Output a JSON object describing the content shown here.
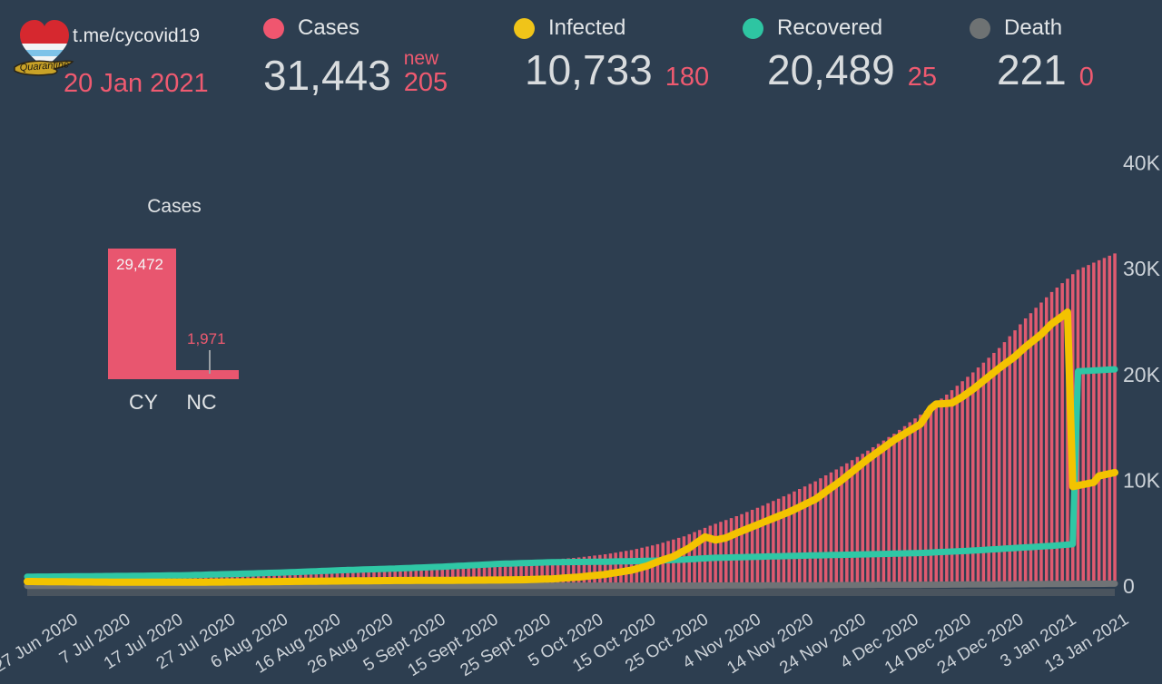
{
  "logo": {
    "caption": "Quarantine",
    "heart_top_color": "#d6282f",
    "stripe_blue": "#3f8fc4",
    "map_gold": "#c9a227"
  },
  "header": {
    "channel": "t.me/cycovid19",
    "date": "20 Jan 2021",
    "stats": [
      {
        "label": "Cases",
        "value": "31,443",
        "new_label": "new",
        "new_value": "205",
        "color": "#f0566f"
      },
      {
        "label": "Infected",
        "value": "10,733",
        "new_value": "180",
        "color": "#f0c419"
      },
      {
        "label": "Recovered",
        "value": "20,489",
        "new_value": "25",
        "color": "#2ec5a2"
      },
      {
        "label": "Death",
        "value": "221",
        "new_value": "0",
        "color": "#6e7273"
      }
    ]
  },
  "colors": {
    "background": "#2d3e50",
    "bars": "#e05a70",
    "infected_line": "#f3c300",
    "recovered_line": "#2fc7a5",
    "death_line": "#6f7376",
    "accent_pink": "#ef5a70",
    "axis_text": "#ccd2d8"
  },
  "chart_data": [
    {
      "type": "bar",
      "title": "Cases",
      "categories": [
        "CY",
        "NC"
      ],
      "values": [
        29472,
        1971
      ],
      "value_labels": [
        "29,472",
        "1,971"
      ],
      "bar_color": "#e8566f"
    },
    {
      "type": "combo",
      "x_unit": "days since 27 Jun 2020 (daily bars, through 20 Jan 2021)",
      "x_tick_labels": [
        "27 Jun 2020",
        "7 Jul 2020",
        "17 Jul 2020",
        "27 Jul 2020",
        "6 Aug 2020",
        "16 Aug 2020",
        "26 Aug 2020",
        "5 Sept 2020",
        "15 Sept 2020",
        "25 Sept 2020",
        "5 Oct 2020",
        "15 Oct 2020",
        "25 Oct 2020",
        "4 Nov 2020",
        "14 Nov 2020",
        "24 Nov 2020",
        "4 Dec 2020",
        "14 Dec 2020",
        "24 Dec 2020",
        "3 Jan 2021",
        "13 Jan 2021"
      ],
      "x_tick_days": [
        0,
        10,
        20,
        30,
        40,
        50,
        60,
        70,
        80,
        90,
        100,
        110,
        120,
        130,
        140,
        150,
        160,
        170,
        180,
        190,
        200
      ],
      "y_tick_labels": [
        "0",
        "10K",
        "20K",
        "30K",
        "40K"
      ],
      "y_tick_values": [
        0,
        10000,
        20000,
        30000,
        40000
      ],
      "ylim": [
        0,
        40000
      ],
      "grid": false,
      "legend_position": "top (header stats row)",
      "series": [
        {
          "name": "Cases",
          "type": "bar",
          "color": "#e05a70",
          "anchors": [
            [
              0,
              800
            ],
            [
              10,
              850
            ],
            [
              20,
              900
            ],
            [
              30,
              1000
            ],
            [
              40,
              1150
            ],
            [
              50,
              1400
            ],
            [
              60,
              1600
            ],
            [
              70,
              1800
            ],
            [
              80,
              2000
            ],
            [
              90,
              2250
            ],
            [
              100,
              2500
            ],
            [
              105,
              2700
            ],
            [
              110,
              3000
            ],
            [
              115,
              3400
            ],
            [
              120,
              3950
            ],
            [
              125,
              4700
            ],
            [
              130,
              5700
            ],
            [
              135,
              6600
            ],
            [
              140,
              7600
            ],
            [
              145,
              8700
            ],
            [
              150,
              9900
            ],
            [
              155,
              11300
            ],
            [
              160,
              12800
            ],
            [
              165,
              14400
            ],
            [
              170,
              16200
            ],
            [
              175,
              18100
            ],
            [
              180,
              20200
            ],
            [
              185,
              22500
            ],
            [
              190,
              25300
            ],
            [
              195,
              27800
            ],
            [
              200,
              29900
            ],
            [
              204,
              30800
            ],
            [
              207,
              31443
            ]
          ]
        },
        {
          "name": "Death",
          "type": "line",
          "color": "#6f7376",
          "anchors": [
            [
              0,
              20
            ],
            [
              60,
              25
            ],
            [
              100,
              30
            ],
            [
              120,
              35
            ],
            [
              130,
              45
            ],
            [
              140,
              55
            ],
            [
              150,
              70
            ],
            [
              160,
              95
            ],
            [
              170,
              115
            ],
            [
              180,
              145
            ],
            [
              190,
              175
            ],
            [
              195,
              190
            ],
            [
              200,
              205
            ],
            [
              207,
              221
            ]
          ]
        },
        {
          "name": "Recovered",
          "type": "line",
          "color": "#2fc7a5",
          "anchors": [
            [
              0,
              880
            ],
            [
              10,
              920
            ],
            [
              20,
              960
            ],
            [
              30,
              1020
            ],
            [
              40,
              1150
            ],
            [
              50,
              1300
            ],
            [
              60,
              1500
            ],
            [
              70,
              1650
            ],
            [
              80,
              1850
            ],
            [
              90,
              2100
            ],
            [
              100,
              2250
            ],
            [
              110,
              2300
            ],
            [
              120,
              2400
            ],
            [
              125,
              2500
            ],
            [
              130,
              2650
            ],
            [
              140,
              2780
            ],
            [
              150,
              2900
            ],
            [
              160,
              3000
            ],
            [
              170,
              3120
            ],
            [
              180,
              3350
            ],
            [
              185,
              3500
            ],
            [
              190,
              3650
            ],
            [
              195,
              3800
            ],
            [
              199,
              3950
            ],
            [
              200,
              20300
            ],
            [
              204,
              20400
            ],
            [
              207,
              20489
            ]
          ]
        },
        {
          "name": "Infected",
          "type": "line",
          "color": "#f3c300",
          "anchors": [
            [
              0,
              430
            ],
            [
              10,
              390
            ],
            [
              20,
              360
            ],
            [
              30,
              360
            ],
            [
              40,
              390
            ],
            [
              50,
              430
            ],
            [
              60,
              480
            ],
            [
              70,
              520
            ],
            [
              80,
              540
            ],
            [
              90,
              570
            ],
            [
              95,
              600
            ],
            [
              100,
              680
            ],
            [
              105,
              850
            ],
            [
              110,
              1100
            ],
            [
              115,
              1500
            ],
            [
              118,
              1900
            ],
            [
              120,
              2300
            ],
            [
              123,
              2800
            ],
            [
              126,
              3600
            ],
            [
              128,
              4300
            ],
            [
              129,
              4650
            ],
            [
              131,
              4350
            ],
            [
              133,
              4550
            ],
            [
              135,
              5000
            ],
            [
              140,
              6000
            ],
            [
              145,
              7000
            ],
            [
              150,
              8200
            ],
            [
              155,
              10000
            ],
            [
              160,
              12000
            ],
            [
              165,
              13800
            ],
            [
              170,
              15300
            ],
            [
              172,
              16800
            ],
            [
              173,
              17200
            ],
            [
              176,
              17300
            ],
            [
              178,
              17900
            ],
            [
              180,
              18600
            ],
            [
              183,
              19800
            ],
            [
              185,
              20600
            ],
            [
              188,
              21700
            ],
            [
              190,
              22600
            ],
            [
              193,
              23800
            ],
            [
              195,
              24800
            ],
            [
              197,
              25500
            ],
            [
              198,
              25900
            ],
            [
              199,
              9400
            ],
            [
              201,
              9600
            ],
            [
              203,
              9800
            ],
            [
              204,
              10400
            ],
            [
              207,
              10733
            ]
          ]
        }
      ]
    }
  ]
}
